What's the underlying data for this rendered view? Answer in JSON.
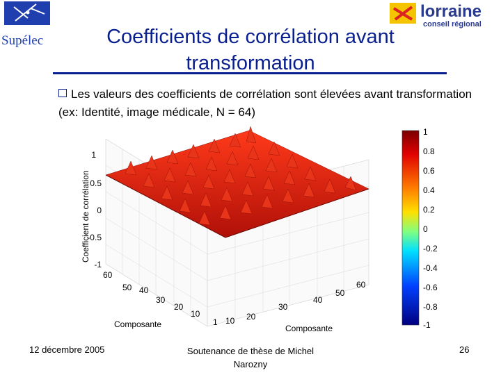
{
  "header": {
    "title_line1": "Coefficients de corrélation avant",
    "title_line2": "transformation",
    "logo_left_text": "Supélec",
    "logo_right_text": "lorraine",
    "logo_right_sub": "conseil régional"
  },
  "bullet": {
    "text": "Les valeurs des coefficients de corrélation sont élevées avant transformation (ex: Identité, image médicale, N = 64)"
  },
  "chart_data": {
    "type": "surface",
    "zlabel": "Coefficient de corrélation",
    "xlabel": "Composante",
    "ylabel": "Composante",
    "z_ticks": [
      "1",
      "0.5",
      "0",
      "-0.5",
      "-1"
    ],
    "x_ticks": [
      "10",
      "20",
      "30",
      "40",
      "50",
      "60"
    ],
    "y_ticks": [
      "1",
      "10",
      "20",
      "30",
      "40",
      "50",
      "60"
    ],
    "colorbar_ticks": [
      "1",
      "0.8",
      "0.6",
      "0.4",
      "0.2",
      "0",
      "-0.2",
      "-0.4",
      "-0.6",
      "-0.8",
      "-1"
    ],
    "N": 64
  },
  "footer": {
    "date": "12 décembre 2005",
    "title_line1": "Soutenance de thèse de Michel",
    "title_line2": "Narozny",
    "page": "26"
  }
}
